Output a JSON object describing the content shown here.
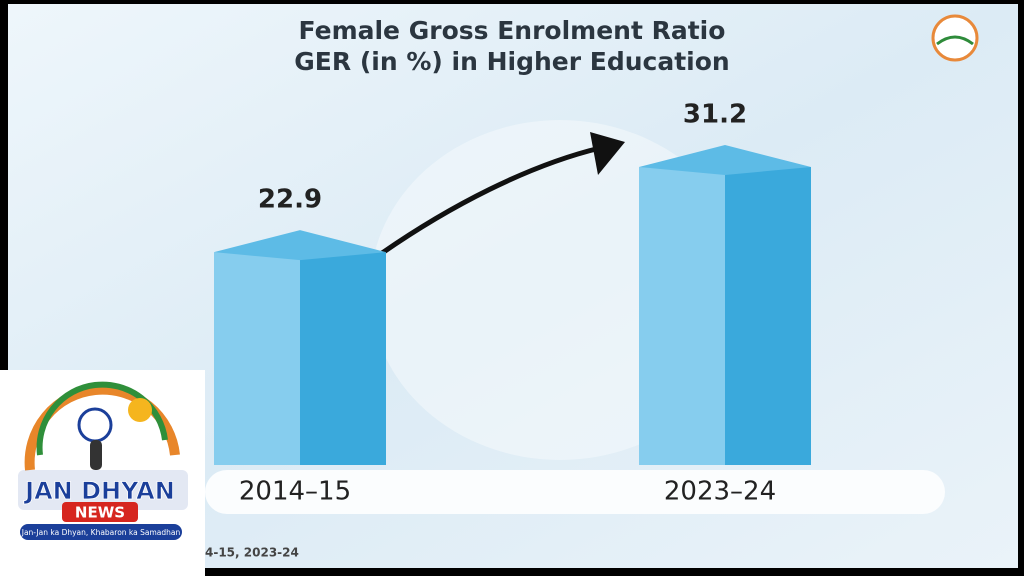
{
  "chart_data": {
    "type": "bar3d",
    "title": [
      "Female Gross Enrolment Ratio",
      "GER (in %) in Higher Education"
    ],
    "categories": [
      "2014–15",
      "2023–24"
    ],
    "values": [
      22.9,
      31.2
    ],
    "color": "#3aa9dc"
  },
  "footnote": "4-15, 2023-24",
  "logo": {
    "name_1": "JAN DHYAN",
    "name_2": "NEWS",
    "tagline": "Jan-Jan ka Dhyan, Khabaron ka Samadhan"
  }
}
